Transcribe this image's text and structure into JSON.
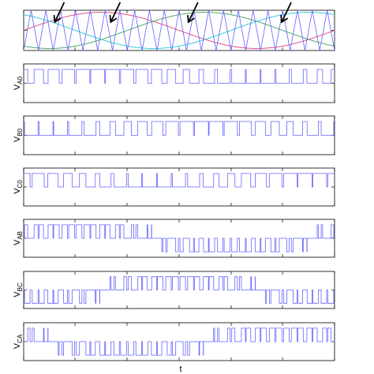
{
  "figure": {
    "xlabel": "t"
  },
  "colors": {
    "carrier": "#6464ff",
    "pulse": "#6464ff",
    "ref_a": "#e0407a",
    "ref_b": "#40a060",
    "ref_c": "#20c8d8",
    "arrow": "#000000",
    "axis": "#000000"
  },
  "chart_data": [
    {
      "type": "line",
      "title": "",
      "description_tag": "carrier-and-references",
      "grid": false,
      "xlim": [
        0,
        1
      ],
      "ylim": [
        -1,
        1
      ],
      "carrier_cycles": 21,
      "series": [
        {
          "kind": "triangle-carrier",
          "cycles": 21,
          "amplitude": 1
        },
        {
          "kind": "sine-reference",
          "phase_deg": 0,
          "amplitude": 0.9
        },
        {
          "kind": "sine-reference",
          "phase_deg": -120,
          "amplitude": 0.9
        },
        {
          "kind": "sine-reference",
          "phase_deg": 120,
          "amplitude": 0.9
        }
      ],
      "annotations": [
        {
          "type": "arrow",
          "at_x": 0.1
        },
        {
          "type": "arrow",
          "at_x": 0.28
        },
        {
          "type": "arrow",
          "at_x": 0.53
        },
        {
          "type": "arrow",
          "at_x": 0.83
        }
      ]
    },
    {
      "type": "line",
      "title": "",
      "ylabel_main": "V",
      "ylabel_sub": "A0",
      "grid": false,
      "xlim": [
        0,
        1
      ],
      "ylim": [
        -1.4,
        1.4
      ],
      "pulses": {
        "signal": "A0",
        "cycles": 21,
        "modulation": 0.9
      }
    },
    {
      "type": "line",
      "title": "",
      "ylabel_main": "V",
      "ylabel_sub": "B0",
      "grid": false,
      "xlim": [
        0,
        1
      ],
      "ylim": [
        -1.4,
        1.4
      ],
      "pulses": {
        "signal": "B0",
        "cycles": 21,
        "modulation": 0.9
      }
    },
    {
      "type": "line",
      "title": "",
      "ylabel_main": "V",
      "ylabel_sub": "C0",
      "grid": false,
      "xlim": [
        0,
        1
      ],
      "ylim": [
        -1.4,
        1.4
      ],
      "pulses": {
        "signal": "C0",
        "cycles": 21,
        "modulation": 0.9
      }
    },
    {
      "type": "line",
      "title": "",
      "ylabel_main": "V",
      "ylabel_sub": "AB",
      "grid": false,
      "xlim": [
        0,
        1
      ],
      "ylim": [
        -1.4,
        1.4
      ],
      "pulses": {
        "signal": "AB",
        "cycles": 21,
        "modulation": 0.9
      }
    },
    {
      "type": "line",
      "title": "",
      "ylabel_main": "V",
      "ylabel_sub": "BC",
      "grid": false,
      "xlim": [
        0,
        1
      ],
      "ylim": [
        -1.4,
        1.4
      ],
      "pulses": {
        "signal": "BC",
        "cycles": 21,
        "modulation": 0.9
      }
    },
    {
      "type": "line",
      "title": "",
      "ylabel_main": "V",
      "ylabel_sub": "CA",
      "grid": false,
      "xlim": [
        0,
        1
      ],
      "ylim": [
        -1.4,
        1.4
      ],
      "pulses": {
        "signal": "CA",
        "cycles": 21,
        "modulation": 0.9
      }
    }
  ]
}
